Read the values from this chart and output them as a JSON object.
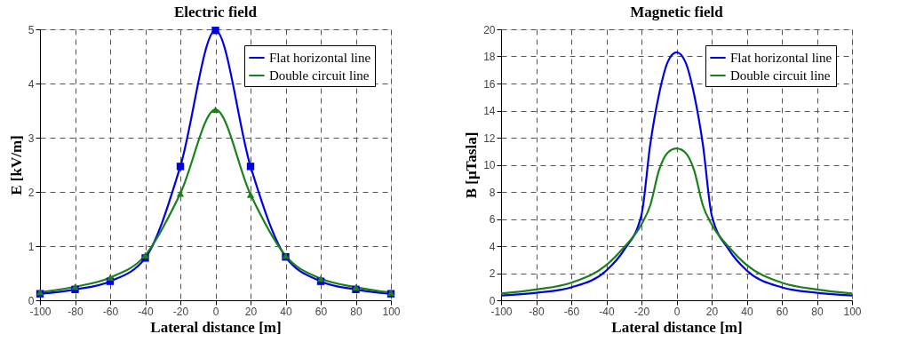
{
  "chart_data": [
    {
      "type": "line",
      "title": "Electric field",
      "xlabel": "Lateral distance [m]",
      "ylabel": "E [kV/m]",
      "xlim": [
        -100,
        100
      ],
      "xticks": [
        -100,
        -80,
        -60,
        -40,
        -20,
        0,
        20,
        40,
        60,
        80,
        100
      ],
      "ylim": [
        0,
        5
      ],
      "yticks": [
        0,
        1,
        2,
        3,
        4,
        5
      ],
      "grid": true,
      "legend": "top right",
      "line_style": "solid",
      "x": [
        -100,
        -80,
        -60,
        -40,
        -20,
        0,
        20,
        40,
        60,
        80,
        100
      ],
      "series": [
        {
          "name": "Flat horizontal line",
          "color": "#0000e6",
          "marker": "square",
          "values": [
            0.12,
            0.2,
            0.35,
            0.78,
            2.47,
            4.98,
            2.47,
            0.8,
            0.35,
            0.2,
            0.12
          ]
        },
        {
          "name": "Double circuit line",
          "color": "#1a801a",
          "marker": "triangle",
          "values": [
            0.15,
            0.25,
            0.42,
            0.83,
            1.97,
            3.52,
            1.95,
            0.82,
            0.4,
            0.24,
            0.14
          ]
        }
      ]
    },
    {
      "type": "line",
      "title": "Magnetic field",
      "xlabel": "Lateral distance [m]",
      "ylabel": "B [μTasla]",
      "xlim": [
        -100,
        100
      ],
      "xticks": [
        -100,
        -80,
        -60,
        -40,
        -20,
        0,
        20,
        40,
        60,
        80,
        100
      ],
      "ylim": [
        0,
        20
      ],
      "yticks": [
        0,
        2,
        4,
        6,
        8,
        10,
        12,
        14,
        16,
        18,
        20
      ],
      "grid": true,
      "legend": "top right",
      "line_style": "solid",
      "marker": "none",
      "x": [
        -100,
        -80,
        -60,
        -40,
        -30,
        -20,
        -15,
        -10,
        -5,
        0,
        5,
        10,
        15,
        20,
        30,
        40,
        60,
        80,
        100
      ],
      "series": [
        {
          "name": "Flat horizontal line",
          "color": "#0000e6",
          "values": [
            0.35,
            0.55,
            0.95,
            2.2,
            3.7,
            6.3,
            11.5,
            15.2,
            17.6,
            18.3,
            17.6,
            15.2,
            11.5,
            6.3,
            3.7,
            2.2,
            0.95,
            0.55,
            0.35
          ]
        },
        {
          "name": "Double circuit line",
          "color": "#1a801a",
          "values": [
            0.5,
            0.8,
            1.3,
            2.6,
            3.9,
            5.6,
            7.0,
            9.6,
            10.9,
            11.2,
            10.9,
            9.6,
            7.0,
            5.6,
            3.9,
            2.6,
            1.3,
            0.8,
            0.5
          ]
        }
      ]
    }
  ]
}
